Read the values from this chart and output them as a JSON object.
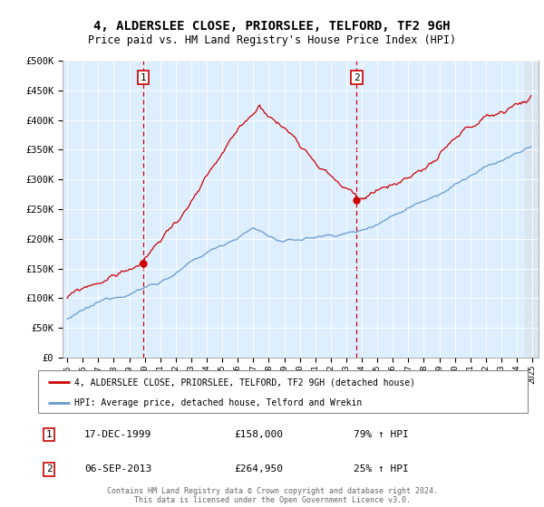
{
  "title": "4, ALDERSLEE CLOSE, PRIORSLEE, TELFORD, TF2 9GH",
  "subtitle": "Price paid vs. HM Land Registry's House Price Index (HPI)",
  "property_label": "4, ALDERSLEE CLOSE, PRIORSLEE, TELFORD, TF2 9GH (detached house)",
  "hpi_label": "HPI: Average price, detached house, Telford and Wrekin",
  "purchase1_date": "17-DEC-1999",
  "purchase1_price": 158000,
  "purchase1_pct": "79% ↑ HPI",
  "purchase2_date": "06-SEP-2013",
  "purchase2_price": 264950,
  "purchase2_pct": "25% ↑ HPI",
  "footer": "Contains HM Land Registry data © Crown copyright and database right 2024.\nThis data is licensed under the Open Government Licence v3.0.",
  "line_color_property": "#cc0000",
  "line_color_hpi": "#6699cc",
  "background_plot": "#ddeeff",
  "ylim": [
    0,
    500000
  ],
  "yticks": [
    0,
    50000,
    100000,
    150000,
    200000,
    250000,
    300000,
    350000,
    400000,
    450000,
    500000
  ],
  "purchase1_year": 1999.96,
  "purchase2_year": 2013.67
}
